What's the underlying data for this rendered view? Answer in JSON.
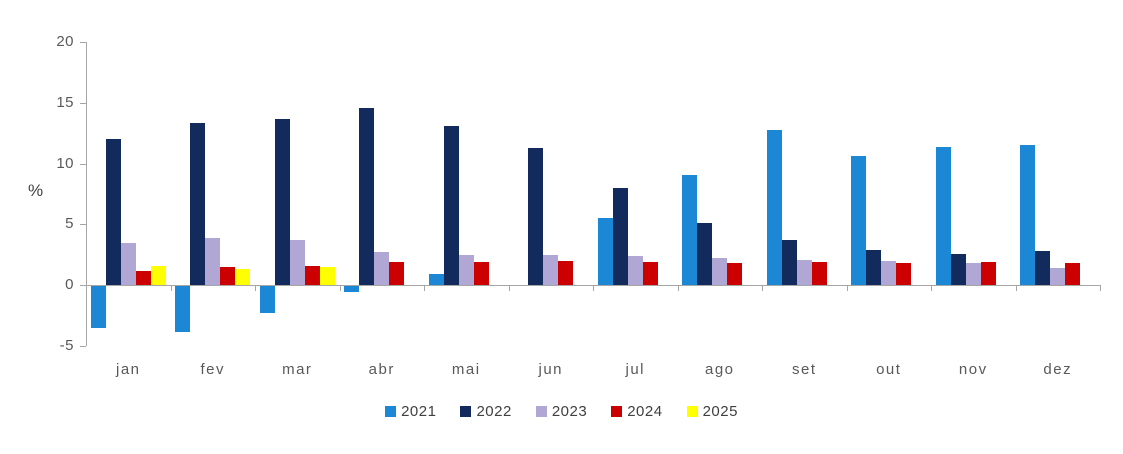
{
  "chart_data": {
    "type": "bar",
    "title": "",
    "ylabel": "%",
    "xlabel": "",
    "ylim": [
      -5,
      20
    ],
    "y_ticks": [
      20,
      15,
      10,
      5,
      0,
      -5
    ],
    "grid": false,
    "legend_position": "bottom-center",
    "categories": [
      "jan",
      "fev",
      "mar",
      "abr",
      "mai",
      "jun",
      "jul",
      "ago",
      "set",
      "out",
      "nov",
      "dez"
    ],
    "series": [
      {
        "name": "2021",
        "color": "#1b87d5",
        "values": [
          -3.4,
          -3.8,
          -2.2,
          -0.5,
          0.9,
          0,
          5.5,
          9.1,
          12.8,
          10.6,
          11.4,
          11.5
        ]
      },
      {
        "name": "2022",
        "color": "#122a5c",
        "values": [
          12.0,
          13.3,
          13.7,
          14.6,
          13.1,
          11.3,
          8.0,
          5.1,
          3.7,
          2.9,
          2.6,
          2.8
        ]
      },
      {
        "name": "2023",
        "color": "#b1a7d4",
        "values": [
          3.5,
          3.9,
          3.7,
          2.7,
          2.5,
          2.5,
          2.4,
          2.2,
          2.1,
          2.0,
          1.8,
          1.4
        ]
      },
      {
        "name": "2024",
        "color": "#cc0000",
        "values": [
          1.2,
          1.5,
          1.6,
          1.9,
          1.9,
          2.0,
          1.9,
          1.8,
          1.9,
          1.8,
          1.9,
          1.8
        ]
      },
      {
        "name": "2025",
        "color": "#ffff00",
        "values": [
          1.6,
          1.3,
          1.5,
          null,
          null,
          null,
          null,
          null,
          null,
          null,
          null,
          null
        ]
      }
    ]
  }
}
